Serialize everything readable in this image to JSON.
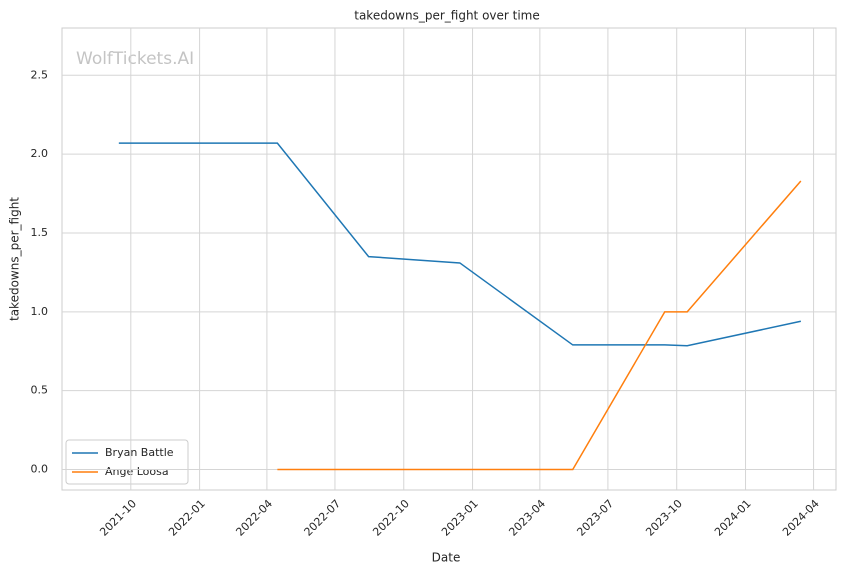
{
  "chart_data": {
    "type": "line",
    "title": "takedowns_per_fight over time",
    "xlabel": "Date",
    "ylabel": "takedowns_per_fight",
    "watermark": "WolfTickets.AI",
    "xlim": [
      "2021-07",
      "2024-05"
    ],
    "xticks": [
      "2021-10",
      "2022-01",
      "2022-04",
      "2022-07",
      "2022-10",
      "2023-01",
      "2023-04",
      "2023-07",
      "2023-10",
      "2024-01",
      "2024-04"
    ],
    "ylim": [
      -0.13,
      2.8
    ],
    "yticks": [
      {
        "value": 0,
        "label": "0.0"
      },
      {
        "value": 0.5,
        "label": "0.5"
      },
      {
        "value": 1,
        "label": "1.0"
      },
      {
        "value": 1.5,
        "label": "1.5"
      },
      {
        "value": 2,
        "label": "2.0"
      },
      {
        "value": 2.5,
        "label": "2.5"
      }
    ],
    "grid": true,
    "legend": "lower left",
    "series": [
      {
        "name": "Bryan Battle",
        "color": "#1f77b4",
        "x": [
          "2021-09",
          "2022-04",
          "2022-08",
          "2022-12",
          "2023-05",
          "2023-09",
          "2023-10",
          "2024-03"
        ],
        "values": [
          2.07,
          2.07,
          1.35,
          1.31,
          0.79,
          0.79,
          0.785,
          0.94
        ]
      },
      {
        "name": "Ange Loosa",
        "color": "#ff7f0e",
        "x": [
          "2022-04",
          "2023-05",
          "2023-09",
          "2023-10",
          "2024-03"
        ],
        "values": [
          0,
          0,
          1.0,
          1.0,
          1.83
        ]
      }
    ]
  }
}
